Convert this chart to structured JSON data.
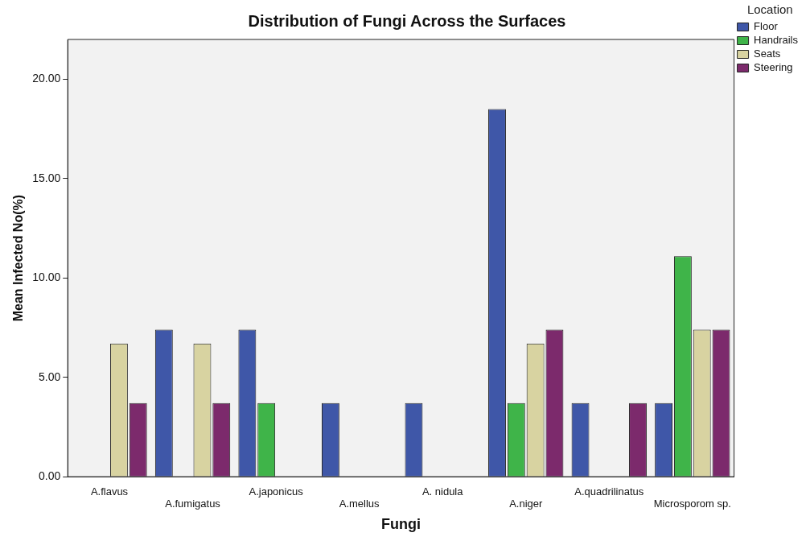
{
  "chart_data": {
    "type": "bar",
    "title": "Distribution of Fungi Across the Surfaces",
    "xlabel": "Fungi",
    "ylabel": "Mean Infected No(%)",
    "legend_title": "Location",
    "categories": [
      "A.flavus",
      "A.fumigatus",
      "A.japonicus",
      "A.mellus",
      "A. nidula",
      "A.niger",
      "A.quadrilinatus",
      "Microsporom sp."
    ],
    "series": [
      {
        "name": "Floor",
        "color": "#3f57a8",
        "values": [
          0,
          7.4,
          7.4,
          3.7,
          3.7,
          18.5,
          3.7,
          3.7
        ]
      },
      {
        "name": "Handrails",
        "color": "#3fb449",
        "values": [
          0,
          0,
          3.7,
          0,
          0,
          3.7,
          0,
          11.1
        ]
      },
      {
        "name": "Seats",
        "color": "#d8d3a1",
        "values": [
          6.7,
          6.7,
          0,
          0,
          0,
          6.7,
          0,
          7.4
        ]
      },
      {
        "name": "Steering",
        "color": "#7c2a6c",
        "values": [
          3.7,
          3.7,
          0,
          0,
          0,
          7.4,
          3.7,
          7.4
        ]
      }
    ],
    "ylim": [
      0,
      22
    ],
    "yticks": [
      {
        "value": 0,
        "label": "0.00"
      },
      {
        "value": 5,
        "label": "5.00"
      },
      {
        "value": 10,
        "label": "10.00"
      },
      {
        "value": 15,
        "label": "15.00"
      },
      {
        "value": 20,
        "label": "20.00"
      }
    ],
    "grid": false,
    "legend": "top right"
  }
}
